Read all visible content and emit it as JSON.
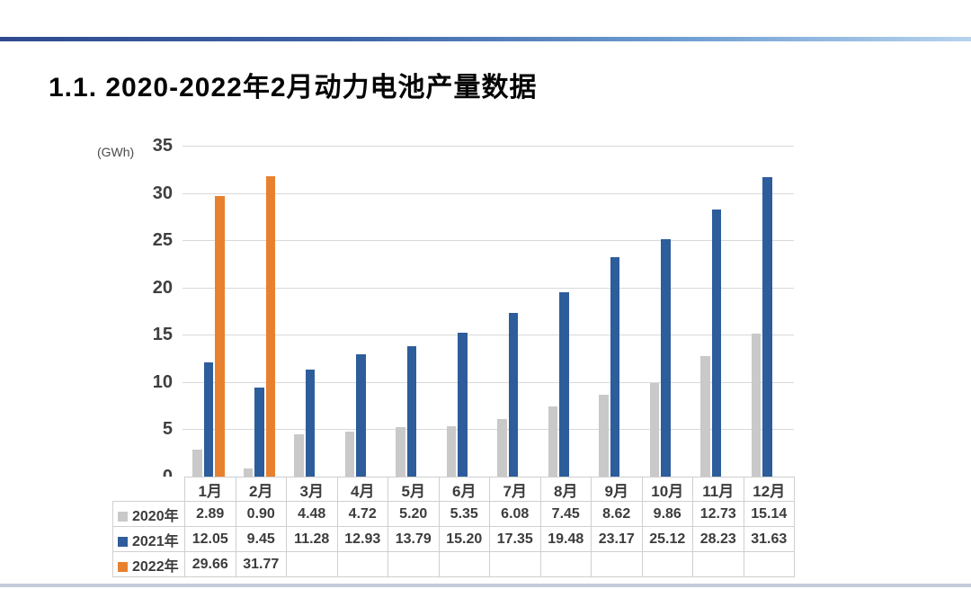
{
  "page": {
    "title": "1.1. 2020-2022年2月动力电池产量数据"
  },
  "chart_data": {
    "type": "bar",
    "title": "1.1. 2020-2022年2月动力电池产量数据",
    "unit_label": "(GWh)",
    "categories": [
      "1月",
      "2月",
      "3月",
      "4月",
      "5月",
      "6月",
      "7月",
      "8月",
      "9月",
      "10月",
      "11月",
      "12月"
    ],
    "series": [
      {
        "name": "2020年",
        "color": "#c9c9c9",
        "values": [
          2.89,
          0.9,
          4.48,
          4.72,
          5.2,
          5.35,
          6.08,
          7.45,
          8.62,
          9.86,
          12.73,
          15.14
        ]
      },
      {
        "name": "2021年",
        "color": "#2d5d9b",
        "values": [
          12.05,
          9.45,
          11.28,
          12.93,
          13.79,
          15.2,
          17.35,
          19.48,
          23.17,
          25.12,
          28.23,
          31.63
        ]
      },
      {
        "name": "2022年",
        "color": "#e8812f",
        "values": [
          29.66,
          31.77,
          null,
          null,
          null,
          null,
          null,
          null,
          null,
          null,
          null,
          null
        ]
      }
    ],
    "y_ticks": [
      35,
      30,
      25,
      20,
      15,
      10,
      5,
      0
    ],
    "ylim": [
      0,
      35
    ],
    "grid": true,
    "legend_position": "data-table-left",
    "value_decimals": 2,
    "gridline_color": "#d9d9d9",
    "table_border_color": "#cfcfcf"
  }
}
